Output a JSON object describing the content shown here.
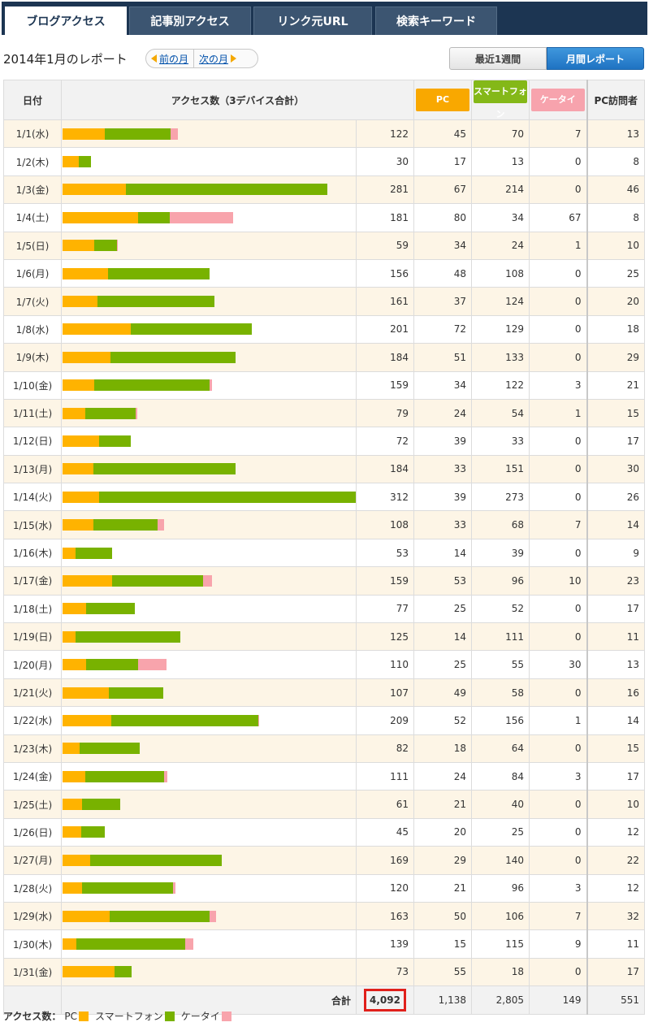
{
  "tabs": [
    {
      "label": "ブログアクセス",
      "active": true
    },
    {
      "label": "記事別アクセス",
      "active": false
    },
    {
      "label": "リンク元URL",
      "active": false
    },
    {
      "label": "検索キーワード",
      "active": false
    }
  ],
  "header": {
    "title": "2014年1月のレポート",
    "prev_label": "前の月",
    "next_label": "次の月",
    "week_button": "最近1週間",
    "month_button": "月間レポート"
  },
  "table": {
    "columns": {
      "date": "日付",
      "access": "アクセス数（3デバイス合計）",
      "pc": "PC",
      "smartphone": "スマートフォン",
      "keitai": "ケータイ",
      "pc_visitors": "PC訪問者"
    },
    "rows": [
      {
        "date": "1/1(水)",
        "total": "122",
        "pc": "45",
        "sp": "70",
        "kt": "7",
        "visitors": "13"
      },
      {
        "date": "1/2(木)",
        "total": "30",
        "pc": "17",
        "sp": "13",
        "kt": "0",
        "visitors": "8"
      },
      {
        "date": "1/3(金)",
        "total": "281",
        "pc": "67",
        "sp": "214",
        "kt": "0",
        "visitors": "46"
      },
      {
        "date": "1/4(土)",
        "total": "181",
        "pc": "80",
        "sp": "34",
        "kt": "67",
        "visitors": "8"
      },
      {
        "date": "1/5(日)",
        "total": "59",
        "pc": "34",
        "sp": "24",
        "kt": "1",
        "visitors": "10"
      },
      {
        "date": "1/6(月)",
        "total": "156",
        "pc": "48",
        "sp": "108",
        "kt": "0",
        "visitors": "25"
      },
      {
        "date": "1/7(火)",
        "total": "161",
        "pc": "37",
        "sp": "124",
        "kt": "0",
        "visitors": "20"
      },
      {
        "date": "1/8(水)",
        "total": "201",
        "pc": "72",
        "sp": "129",
        "kt": "0",
        "visitors": "18"
      },
      {
        "date": "1/9(木)",
        "total": "184",
        "pc": "51",
        "sp": "133",
        "kt": "0",
        "visitors": "29"
      },
      {
        "date": "1/10(金)",
        "total": "159",
        "pc": "34",
        "sp": "122",
        "kt": "3",
        "visitors": "21"
      },
      {
        "date": "1/11(土)",
        "total": "79",
        "pc": "24",
        "sp": "54",
        "kt": "1",
        "visitors": "15"
      },
      {
        "date": "1/12(日)",
        "total": "72",
        "pc": "39",
        "sp": "33",
        "kt": "0",
        "visitors": "17"
      },
      {
        "date": "1/13(月)",
        "total": "184",
        "pc": "33",
        "sp": "151",
        "kt": "0",
        "visitors": "30"
      },
      {
        "date": "1/14(火)",
        "total": "312",
        "pc": "39",
        "sp": "273",
        "kt": "0",
        "visitors": "26"
      },
      {
        "date": "1/15(水)",
        "total": "108",
        "pc": "33",
        "sp": "68",
        "kt": "7",
        "visitors": "14"
      },
      {
        "date": "1/16(木)",
        "total": "53",
        "pc": "14",
        "sp": "39",
        "kt": "0",
        "visitors": "9"
      },
      {
        "date": "1/17(金)",
        "total": "159",
        "pc": "53",
        "sp": "96",
        "kt": "10",
        "visitors": "23"
      },
      {
        "date": "1/18(土)",
        "total": "77",
        "pc": "25",
        "sp": "52",
        "kt": "0",
        "visitors": "17"
      },
      {
        "date": "1/19(日)",
        "total": "125",
        "pc": "14",
        "sp": "111",
        "kt": "0",
        "visitors": "11"
      },
      {
        "date": "1/20(月)",
        "total": "110",
        "pc": "25",
        "sp": "55",
        "kt": "30",
        "visitors": "13"
      },
      {
        "date": "1/21(火)",
        "total": "107",
        "pc": "49",
        "sp": "58",
        "kt": "0",
        "visitors": "16"
      },
      {
        "date": "1/22(水)",
        "total": "209",
        "pc": "52",
        "sp": "156",
        "kt": "1",
        "visitors": "14"
      },
      {
        "date": "1/23(木)",
        "total": "82",
        "pc": "18",
        "sp": "64",
        "kt": "0",
        "visitors": "15"
      },
      {
        "date": "1/24(金)",
        "total": "111",
        "pc": "24",
        "sp": "84",
        "kt": "3",
        "visitors": "17"
      },
      {
        "date": "1/25(土)",
        "total": "61",
        "pc": "21",
        "sp": "40",
        "kt": "0",
        "visitors": "10"
      },
      {
        "date": "1/26(日)",
        "total": "45",
        "pc": "20",
        "sp": "25",
        "kt": "0",
        "visitors": "12"
      },
      {
        "date": "1/27(月)",
        "total": "169",
        "pc": "29",
        "sp": "140",
        "kt": "0",
        "visitors": "22"
      },
      {
        "date": "1/28(火)",
        "total": "120",
        "pc": "21",
        "sp": "96",
        "kt": "3",
        "visitors": "12"
      },
      {
        "date": "1/29(水)",
        "total": "163",
        "pc": "50",
        "sp": "106",
        "kt": "7",
        "visitors": "32"
      },
      {
        "date": "1/30(木)",
        "total": "139",
        "pc": "15",
        "sp": "115",
        "kt": "9",
        "visitors": "11"
      },
      {
        "date": "1/31(金)",
        "total": "73",
        "pc": "55",
        "sp": "18",
        "kt": "0",
        "visitors": "17"
      }
    ],
    "footer": {
      "label": "合計",
      "total": "4,092",
      "pc": "1,138",
      "sp": "2,805",
      "kt": "149",
      "visitors": "551"
    }
  },
  "legend": {
    "title": "アクセス数：",
    "pc": "PC",
    "sp": "スマートフォン",
    "kt": "ケータイ"
  },
  "colors": {
    "pc": "#ffb300",
    "smartphone": "#78b200",
    "keitai": "#f8a4ac",
    "highlight": "#e0201b"
  }
}
